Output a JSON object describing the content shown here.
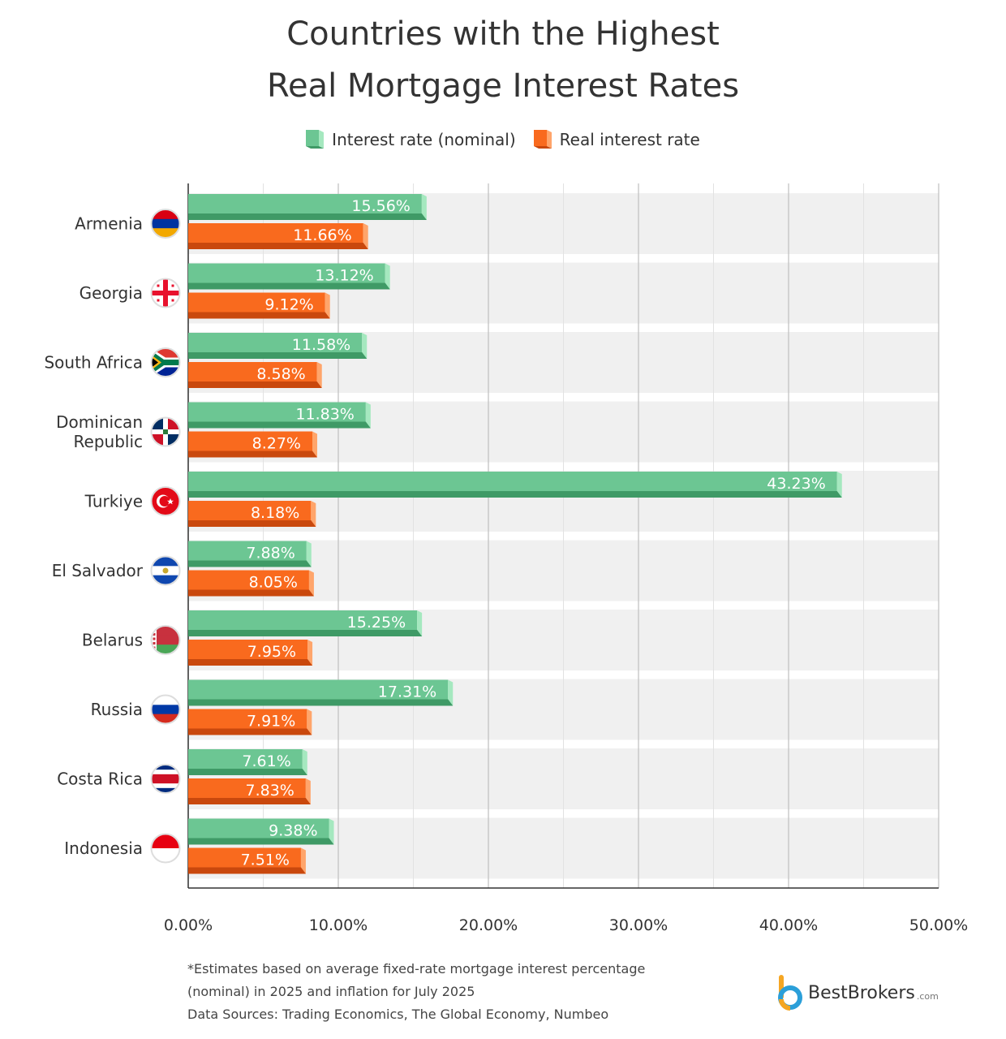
{
  "title": {
    "line1": "Countries with the Highest",
    "line2": "Real Mortgage Interest Rates"
  },
  "footnote": {
    "line1": "*Estimates based on average fixed-rate mortgage interest percentage",
    "line2": "(nominal) in 2025 and inflation for July 2025",
    "line3": "Data Sources: Trading Economics, The Global Economy, Numbeo"
  },
  "brand": {
    "name": "BestBrokers",
    "suffix": ".com"
  },
  "colors": {
    "nominal": "#6cc693",
    "nominal_dark": "#3f9a66",
    "nominal_light": "#a5e8bf",
    "real": "#f96a1e",
    "real_dark": "#c9480d",
    "real_light": "#ffa56b",
    "row_band": "#f0f0f0",
    "grid": "#cfcfcf"
  },
  "chart_data": {
    "type": "bar",
    "orientation": "horizontal",
    "categories": [
      "Armenia",
      "Georgia",
      "South Africa",
      "Dominican Republic",
      "Turkiye",
      "El Salvador",
      "Belarus",
      "Russia",
      "Costa Rica",
      "Indonesia"
    ],
    "series": [
      {
        "name": "Interest rate (nominal)",
        "values": [
          15.56,
          13.12,
          11.58,
          11.83,
          43.23,
          7.88,
          15.25,
          17.31,
          7.61,
          9.38
        ],
        "labels": [
          "15.56%",
          "13.12%",
          "11.58%",
          "11.83%",
          "43.23%",
          "7.88%",
          "15.25%",
          "17.31%",
          "7.61%",
          "9.38%"
        ]
      },
      {
        "name": "Real interest rate",
        "values": [
          11.66,
          9.12,
          8.58,
          8.27,
          8.18,
          8.05,
          7.95,
          7.91,
          7.83,
          7.51
        ],
        "labels": [
          "11.66%",
          "9.12%",
          "8.58%",
          "8.27%",
          "8.18%",
          "8.05%",
          "7.95%",
          "7.91%",
          "7.83%",
          "7.51%"
        ]
      }
    ],
    "xlim": [
      0,
      50
    ],
    "xticks": [
      0,
      10,
      20,
      30,
      40,
      50
    ],
    "xtick_labels": [
      "0.00%",
      "10.00%",
      "20.00%",
      "30.00%",
      "40.00%",
      "50.00%"
    ],
    "grid": true,
    "legend_position": "top"
  },
  "flags": [
    {
      "country": "Armenia",
      "stripes": [
        "#d90012",
        "#0033a0",
        "#f2a800"
      ]
    },
    {
      "country": "Georgia",
      "kind": "cross"
    },
    {
      "country": "South Africa",
      "kind": "za"
    },
    {
      "country": "Dominican Republic",
      "kind": "do"
    },
    {
      "country": "Turkiye",
      "kind": "tr"
    },
    {
      "country": "El Salvador",
      "stripes": [
        "#0f47af",
        "#ffffff",
        "#0f47af"
      ],
      "emblem": true
    },
    {
      "country": "Belarus",
      "stripes": [
        "#c8313e",
        "#c8313e",
        "#4aa657"
      ],
      "ornament": true
    },
    {
      "country": "Russia",
      "stripes": [
        "#ffffff",
        "#0039a6",
        "#d52b1e"
      ]
    },
    {
      "country": "Costa Rica",
      "stripes": [
        "#002b7f",
        "#ffffff",
        "#ce1126",
        "#ce1126",
        "#ffffff",
        "#002b7f"
      ]
    },
    {
      "country": "Indonesia",
      "stripes": [
        "#e70011",
        "#ffffff"
      ]
    }
  ]
}
